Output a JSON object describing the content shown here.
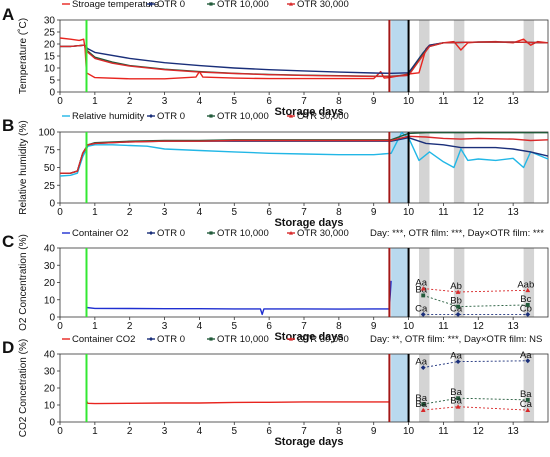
{
  "colors": {
    "storage_temperature": "#e8251f",
    "relative_humidity": "#22b7e6",
    "container_o2": "#1f2fd1",
    "container_co2": "#e8251f",
    "otr0": "#1a2f7a",
    "otr10000": "#225a3a",
    "otr30000": "#d8292a",
    "green_marker": "#33e833",
    "dark_red_marker": "#a31818",
    "black_marker": "#000000",
    "blue_band": "#b9d9ee",
    "gray_band": "#d4d4d4"
  },
  "chart_data": [
    {
      "panel": "A",
      "type": "line",
      "ylabel": "Temperature (˚C)",
      "xlabel": "Storage days",
      "xlim": [
        0,
        14
      ],
      "ylim": [
        0,
        30
      ],
      "x_ticks": [
        0,
        1,
        2,
        3,
        4,
        5,
        6,
        7,
        8,
        9,
        10,
        11,
        12,
        13
      ],
      "y_ticks": [
        0,
        5,
        10,
        15,
        20,
        25,
        30
      ],
      "legend": [
        "Stroage temperature",
        "OTR 0",
        "OTR 10,000",
        "OTR 30,000"
      ],
      "series": [
        {
          "name": "Stroage temperature",
          "x": [
            0,
            0.3,
            0.55,
            0.68,
            0.72,
            0.76,
            1.0,
            2.0,
            3.0,
            3.9,
            4.0,
            4.1,
            5.0,
            6.0,
            7.0,
            8.0,
            9.0,
            9.2,
            9.3,
            9.45,
            10.0,
            10.3,
            10.42,
            10.5,
            10.6,
            11.0,
            11.3,
            11.5,
            11.7,
            12.0,
            12.5,
            13.0,
            13.3,
            13.5,
            13.7,
            14.0
          ],
          "y": [
            22.5,
            22.0,
            21.5,
            22.0,
            18.0,
            8.0,
            6.0,
            5.5,
            5.5,
            6.2,
            8.5,
            6.2,
            5.8,
            5.6,
            5.6,
            5.6,
            5.6,
            8.5,
            5.8,
            6.0,
            7.5,
            8.0,
            14.0,
            18.0,
            19.5,
            20.5,
            21.0,
            17.5,
            20.5,
            20.8,
            21.0,
            20.5,
            22.0,
            19.5,
            21.0,
            20.5
          ]
        },
        {
          "name": "OTR 0",
          "x": [
            0,
            0.3,
            0.7,
            0.8,
            1.0,
            2.0,
            3.0,
            4.0,
            5.0,
            6.0,
            7.0,
            8.0,
            9.0,
            9.5,
            10.0,
            10.4,
            10.6,
            11.0,
            12.0,
            13.0,
            14.0
          ],
          "y": [
            19.0,
            19.0,
            19.5,
            18.0,
            16.5,
            14.0,
            12.2,
            11.0,
            10.0,
            9.3,
            8.8,
            8.3,
            7.9,
            7.8,
            8.0,
            16.0,
            19.5,
            20.5,
            20.8,
            20.8,
            20.5
          ]
        },
        {
          "name": "OTR 10,000",
          "x": [
            0,
            0.3,
            0.7,
            0.8,
            1.0,
            1.5,
            2.0,
            3.0,
            4.0,
            5.0,
            6.0,
            7.0,
            8.0,
            9.0,
            9.5,
            10.0,
            10.4,
            10.6,
            11.0,
            12.0,
            13.0,
            14.0
          ],
          "y": [
            19.0,
            19.0,
            19.5,
            17.0,
            14.5,
            12.5,
            11.0,
            9.5,
            8.5,
            7.8,
            7.3,
            7.0,
            6.8,
            6.6,
            6.6,
            7.0,
            15.5,
            19.0,
            20.5,
            20.8,
            20.8,
            20.5
          ]
        },
        {
          "name": "OTR 30,000",
          "x": [
            0,
            0.3,
            0.7,
            0.8,
            1.0,
            1.5,
            2.0,
            3.0,
            4.0,
            5.0,
            6.0,
            7.0,
            8.0,
            9.0,
            9.5,
            10.0,
            10.4,
            10.6,
            11.0,
            12.0,
            13.0,
            14.0
          ],
          "y": [
            19.0,
            19.0,
            19.5,
            16.5,
            14.0,
            12.0,
            10.8,
            9.3,
            8.3,
            7.7,
            7.2,
            6.9,
            6.7,
            6.5,
            6.5,
            6.9,
            15.0,
            19.0,
            20.5,
            20.8,
            20.8,
            20.5
          ]
        }
      ]
    },
    {
      "panel": "B",
      "type": "line",
      "ylabel": "Relative humidity (%)",
      "xlabel": "Storage days",
      "xlim": [
        0,
        14
      ],
      "ylim": [
        0,
        100
      ],
      "x_ticks": [
        0,
        1,
        2,
        3,
        4,
        5,
        6,
        7,
        8,
        9,
        10,
        11,
        12,
        13
      ],
      "y_ticks": [
        0,
        25,
        50,
        75,
        100
      ],
      "legend": [
        "Relative humidity",
        "OTR 0",
        "OTR 10,000",
        "OTR 30,000"
      ],
      "series": [
        {
          "name": "Relative humidity",
          "x": [
            0,
            0.3,
            0.5,
            0.65,
            0.8,
            1.0,
            1.5,
            2.0,
            2.5,
            3.0,
            4.0,
            5.0,
            6.0,
            7.0,
            8.0,
            9.0,
            9.5,
            9.8,
            10.0,
            10.3,
            10.6,
            11.0,
            11.3,
            11.5,
            11.7,
            12.0,
            12.5,
            13.0,
            13.3,
            13.5,
            14.0
          ],
          "y": [
            38,
            39,
            42,
            65,
            80,
            82,
            82,
            81,
            80,
            76,
            74,
            72,
            70,
            69,
            68,
            68,
            70,
            99,
            92,
            60,
            72,
            58,
            50,
            76,
            60,
            62,
            60,
            63,
            50,
            72,
            62
          ]
        },
        {
          "name": "OTR 0",
          "x": [
            0,
            0.3,
            0.5,
            0.65,
            0.8,
            1.0,
            2.0,
            3.0,
            4.0,
            5.0,
            6.0,
            7.0,
            8.0,
            9.0,
            9.5,
            10.0,
            10.5,
            11.0,
            11.5,
            12.0,
            12.5,
            13.0,
            13.5,
            14.0
          ],
          "y": [
            42,
            42,
            45,
            70,
            82,
            84,
            86,
            87,
            87,
            87,
            87,
            87,
            87,
            87,
            87,
            92,
            84,
            82,
            78,
            78,
            78,
            76,
            72,
            66
          ]
        },
        {
          "name": "OTR 10,000",
          "x": [
            0,
            0.3,
            0.5,
            0.65,
            0.8,
            1.0,
            2.0,
            3.0,
            4.0,
            5.0,
            6.0,
            7.0,
            8.0,
            9.0,
            9.5,
            10.0,
            10.5,
            11.0,
            12.0,
            13.0,
            14.0
          ],
          "y": [
            42,
            42,
            45,
            70,
            82,
            85,
            87,
            88,
            88,
            89,
            89,
            89,
            89,
            89,
            89,
            98,
            99,
            99,
            99,
            99,
            99
          ]
        },
        {
          "name": "OTR 30,000",
          "x": [
            0,
            0.3,
            0.5,
            0.65,
            0.8,
            1.0,
            2.0,
            3.0,
            4.0,
            5.0,
            6.0,
            7.0,
            8.0,
            9.0,
            9.5,
            10.0,
            10.5,
            11.0,
            11.5,
            12.0,
            13.0,
            13.5,
            14.0
          ],
          "y": [
            42,
            42,
            45,
            70,
            82,
            84,
            86,
            87,
            87,
            88,
            88,
            88,
            88,
            88,
            88,
            94,
            93,
            91,
            90,
            91,
            90,
            88,
            89
          ]
        }
      ]
    },
    {
      "panel": "C",
      "type": "line",
      "ylabel": "O2 Concentration (%)",
      "xlabel": "Storage days",
      "xlim": [
        0,
        14
      ],
      "ylim": [
        0,
        40
      ],
      "x_ticks": [
        0,
        1,
        2,
        3,
        4,
        5,
        6,
        7,
        8,
        9,
        10,
        11,
        12,
        13
      ],
      "y_ticks": [
        0,
        10,
        20,
        30,
        40
      ],
      "legend": [
        "Container O2",
        "OTR 0",
        "OTR 10,000",
        "OTR 30,000"
      ],
      "annotation": "Day: ***, OTR film: ***, Day×OTR film: ***",
      "series": [
        {
          "name": "Container O2",
          "x": [
            0.76,
            1.0,
            2.0,
            3.0,
            4.0,
            5.0,
            5.75,
            5.8,
            5.85,
            6.0,
            7.0,
            8.0,
            9.0,
            9.45,
            9.5
          ],
          "y": [
            5.5,
            5.0,
            4.9,
            4.8,
            4.8,
            4.7,
            4.7,
            1.5,
            4.7,
            4.7,
            4.7,
            4.6,
            4.7,
            4.7,
            21.0
          ]
        },
        {
          "name": "OTR 0",
          "x": [
            10.42,
            11.42,
            13.42
          ],
          "y": [
            1.5,
            1.5,
            1.5
          ],
          "point_labels": [
            "Ca",
            "Ca",
            "Cb"
          ]
        },
        {
          "name": "OTR 10,000",
          "x": [
            10.42,
            11.42,
            13.42
          ],
          "y": [
            12.5,
            6.0,
            7.0
          ],
          "point_labels": [
            "Ba",
            "Bb",
            "Bc"
          ]
        },
        {
          "name": "OTR 30,000",
          "x": [
            10.42,
            11.42,
            13.42
          ],
          "y": [
            16.5,
            14.5,
            15.5
          ],
          "point_labels": [
            "Aa",
            "Ab",
            "Aab"
          ]
        }
      ]
    },
    {
      "panel": "D",
      "type": "line",
      "ylabel": "CO2 Concetration (%)",
      "xlabel": "Storage days",
      "xlim": [
        0,
        14
      ],
      "ylim": [
        0,
        40
      ],
      "x_ticks": [
        0,
        1,
        2,
        3,
        4,
        5,
        6,
        7,
        8,
        9,
        10,
        11,
        12,
        13
      ],
      "y_ticks": [
        0,
        10,
        20,
        30,
        40
      ],
      "legend": [
        "Container CO2",
        "OTR 0",
        "OTR 10,000",
        "OTR 30,000"
      ],
      "annotation": "Day: **, OTR film: ***, Day×OTR film: NS",
      "series": [
        {
          "name": "Container CO2",
          "x": [
            0.76,
            0.8,
            1.0,
            2.0,
            3.0,
            4.0,
            5.0,
            6.0,
            7.0,
            8.0,
            9.0,
            9.45
          ],
          "y": [
            12.5,
            11.0,
            10.8,
            11.0,
            11.2,
            11.2,
            11.5,
            11.6,
            11.8,
            11.8,
            11.8,
            11.8
          ]
        },
        {
          "name": "OTR 0",
          "x": [
            10.42,
            11.42,
            13.42
          ],
          "y": [
            32.0,
            35.5,
            36.0
          ],
          "point_labels": [
            "Aa",
            "Aa",
            "Aa"
          ]
        },
        {
          "name": "OTR 10,000",
          "x": [
            10.42,
            11.42,
            13.42
          ],
          "y": [
            10.5,
            14.0,
            13.0
          ],
          "point_labels": [
            "Ba",
            "Ba",
            "Ba"
          ]
        },
        {
          "name": "OTR 30,000",
          "x": [
            10.42,
            11.42,
            13.42
          ],
          "y": [
            7.0,
            9.0,
            7.0
          ],
          "point_labels": [
            "Ba",
            "Ba",
            "Ca"
          ]
        }
      ]
    }
  ],
  "panel_labels": [
    "A",
    "B",
    "C",
    "D"
  ],
  "events": {
    "green_line_day": 0.76,
    "dark_red_line_day": 9.45,
    "black_line_day": 10.0,
    "blue_band_days": [
      9.5,
      10.0
    ],
    "gray_band_days": [
      [
        10.3,
        10.6
      ],
      [
        11.3,
        11.6
      ],
      [
        13.3,
        13.6
      ]
    ]
  }
}
